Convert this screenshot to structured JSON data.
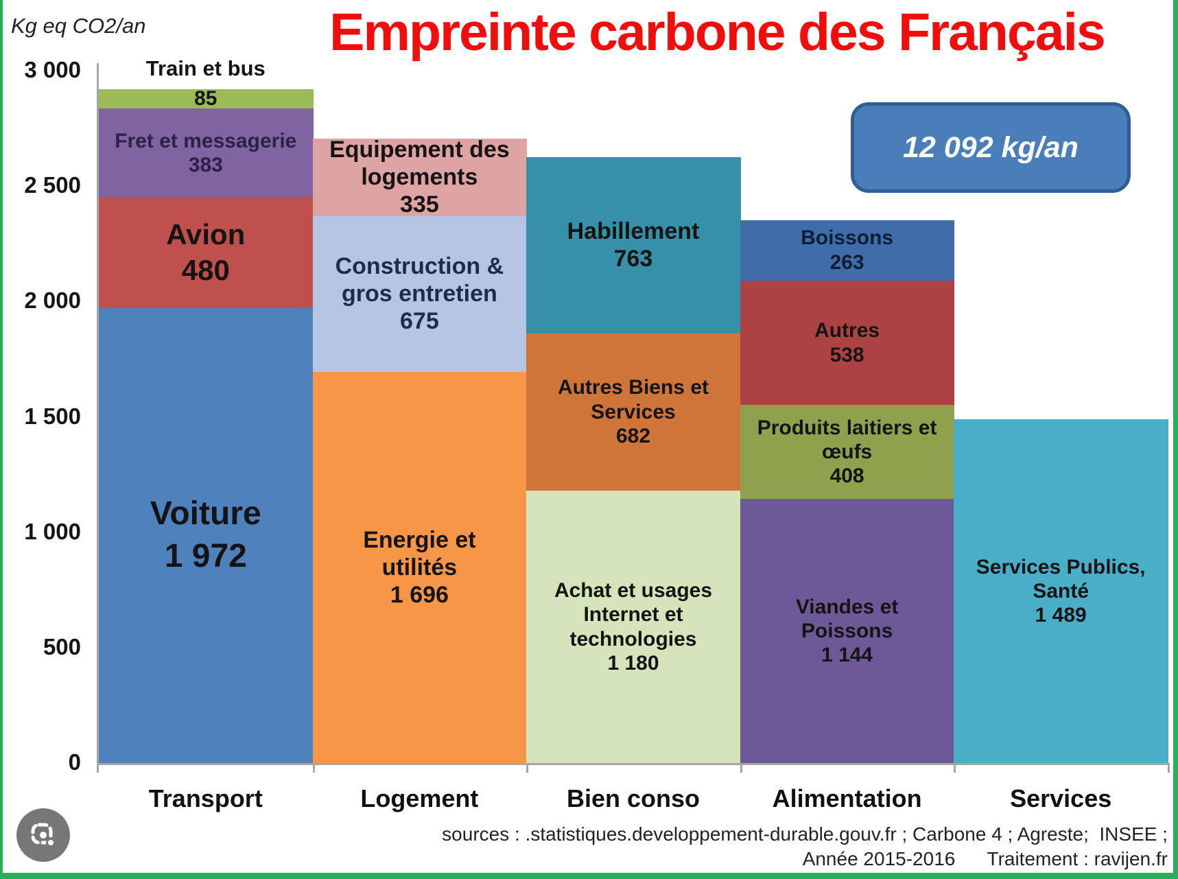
{
  "title": "Empreinte carbone des Français",
  "unit_label": "Kg eq CO2/an",
  "total_badge": "12 092 kg/an",
  "source_line1": "sources : .statistiques.developpement-durable.gouv.fr ; Carbone 4 ; Agreste;  INSEE ;",
  "source_line2": "Année 2015-2016      Traitement : ravijen.fr",
  "colors": {
    "frame_green": "#24B15A",
    "title_red": "#F20D0D",
    "badge_fill": "#4A7EBB",
    "badge_border": "#315E92",
    "axis_gray": "#A6A6A6"
  },
  "lens_icon": "google-lens-camera-icon",
  "chart_data": {
    "type": "bar",
    "stacked": true,
    "title": "Empreinte carbone des Français",
    "ylabel": "Kg eq CO2/an",
    "total_annotation": "12 092 kg/an",
    "total": 12092,
    "ylim": [
      0,
      3000
    ],
    "ytick_step": 500,
    "yticks": [
      {
        "label": "3 000",
        "value": 3000
      },
      {
        "label": "2 500",
        "value": 2500
      },
      {
        "label": "2 000",
        "value": 2000
      },
      {
        "label": "1 500",
        "value": 1500
      },
      {
        "label": "1 000",
        "value": 1000
      },
      {
        "label": "500",
        "value": 500
      },
      {
        "label": "0",
        "value": 0
      }
    ],
    "grid": false,
    "legend": "none",
    "categories": [
      {
        "label": "Transport",
        "segments": [
          {
            "name": "Voiture",
            "lines": [
              "Voiture"
            ],
            "value": 1972,
            "value_display": "1 972",
            "color": "#4F81BD",
            "size": "xl"
          },
          {
            "name": "Avion",
            "lines": [
              "Avion"
            ],
            "value": 480,
            "value_display": "480",
            "color": "#C0504D",
            "size": "lg"
          },
          {
            "name": "Fret et messagerie",
            "lines": [
              "Fret et messagerie"
            ],
            "value": 383,
            "value_display": "383",
            "color": "#8064A2",
            "text_color": "#2A2144"
          },
          {
            "name": "Train et bus",
            "lines": [
              "Train et bus"
            ],
            "value": 85,
            "value_display": "85",
            "color": "#9BBB59",
            "label_outside": true
          }
        ]
      },
      {
        "label": "Logement",
        "segments": [
          {
            "name": "Energie et utilités",
            "lines": [
              "Energie et",
              "utilités"
            ],
            "value": 1696,
            "value_display": "1 696",
            "color": "#F79646",
            "size": "md2"
          },
          {
            "name": "Construction & gros entretien",
            "lines": [
              "Construction &",
              "gros entretien"
            ],
            "value": 675,
            "value_display": "675",
            "color": "#B7C5E4",
            "text_color": "#1F2B4D",
            "size": "md2"
          },
          {
            "name": "Equipement des logements",
            "lines": [
              "Equipement des",
              "logements"
            ],
            "value": 335,
            "value_display": "335",
            "color": "#DEA3A3",
            "size": "md2"
          }
        ]
      },
      {
        "label": "Bien conso",
        "segments": [
          {
            "name": "Achat et usages Internet et technologies",
            "lines": [
              "Achat et usages",
              "Internet et",
              "technologies"
            ],
            "value": 1180,
            "value_display": "1 180",
            "color": "#D6E4BC"
          },
          {
            "name": "Autres Biens et Services",
            "lines": [
              "Autres Biens et",
              "Services"
            ],
            "value": 682,
            "value_display": "682",
            "color": "#D0753A"
          },
          {
            "name": "Habillement",
            "lines": [
              "Habillement"
            ],
            "value": 763,
            "value_display": "763",
            "color": "#3690A8",
            "size": "md2"
          }
        ]
      },
      {
        "label": "Alimentation",
        "segments": [
          {
            "name": "Viandes et Poissons",
            "lines": [
              "Viandes et",
              "Poissons"
            ],
            "value": 1144,
            "value_display": "1 144",
            "color": "#6D5898"
          },
          {
            "name": "Produits laitiers et œufs",
            "lines": [
              "Produits laitiers et",
              "œufs"
            ],
            "value": 408,
            "value_display": "408",
            "color": "#8EA24D"
          },
          {
            "name": "Autres",
            "lines": [
              "Autres"
            ],
            "value": 538,
            "value_display": "538",
            "color": "#AC4243"
          },
          {
            "name": "Boissons",
            "lines": [
              "Boissons"
            ],
            "value": 263,
            "value_display": "263",
            "color": "#3F6DA8",
            "text_color": "#101C36"
          }
        ]
      },
      {
        "label": "Services",
        "segments": [
          {
            "name": "Services Publics, Santé",
            "lines": [
              "Services Publics,",
              "Santé"
            ],
            "value": 1489,
            "value_display": "1 489",
            "color": "#4AAEC8"
          }
        ]
      }
    ]
  }
}
